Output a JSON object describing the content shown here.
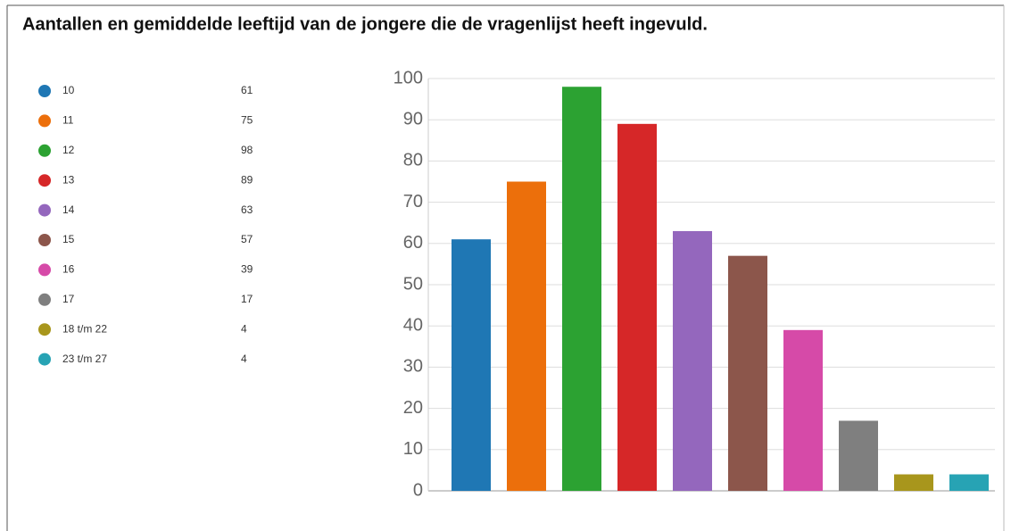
{
  "chart_data": {
    "type": "bar",
    "title": "Aantallen en gemiddelde leeftijd van de jongere die de vragenlijst heeft ingevuld.",
    "categories": [
      "10",
      "11",
      "12",
      "13",
      "14",
      "15",
      "16",
      "17",
      "18 t/m 22",
      "23 t/m 27"
    ],
    "values": [
      61,
      75,
      98,
      89,
      63,
      57,
      39,
      17,
      4,
      4
    ],
    "colors": [
      "#1f77b4",
      "#ec6f0b",
      "#2ca232",
      "#d62728",
      "#9467bd",
      "#8c564b",
      "#d64aa8",
      "#7f7f7f",
      "#a8961c",
      "#27a3b4"
    ],
    "ylim": [
      0,
      100
    ],
    "yticks": [
      0,
      10,
      20,
      30,
      40,
      50,
      60,
      70,
      80,
      90,
      100
    ],
    "grid": true
  }
}
